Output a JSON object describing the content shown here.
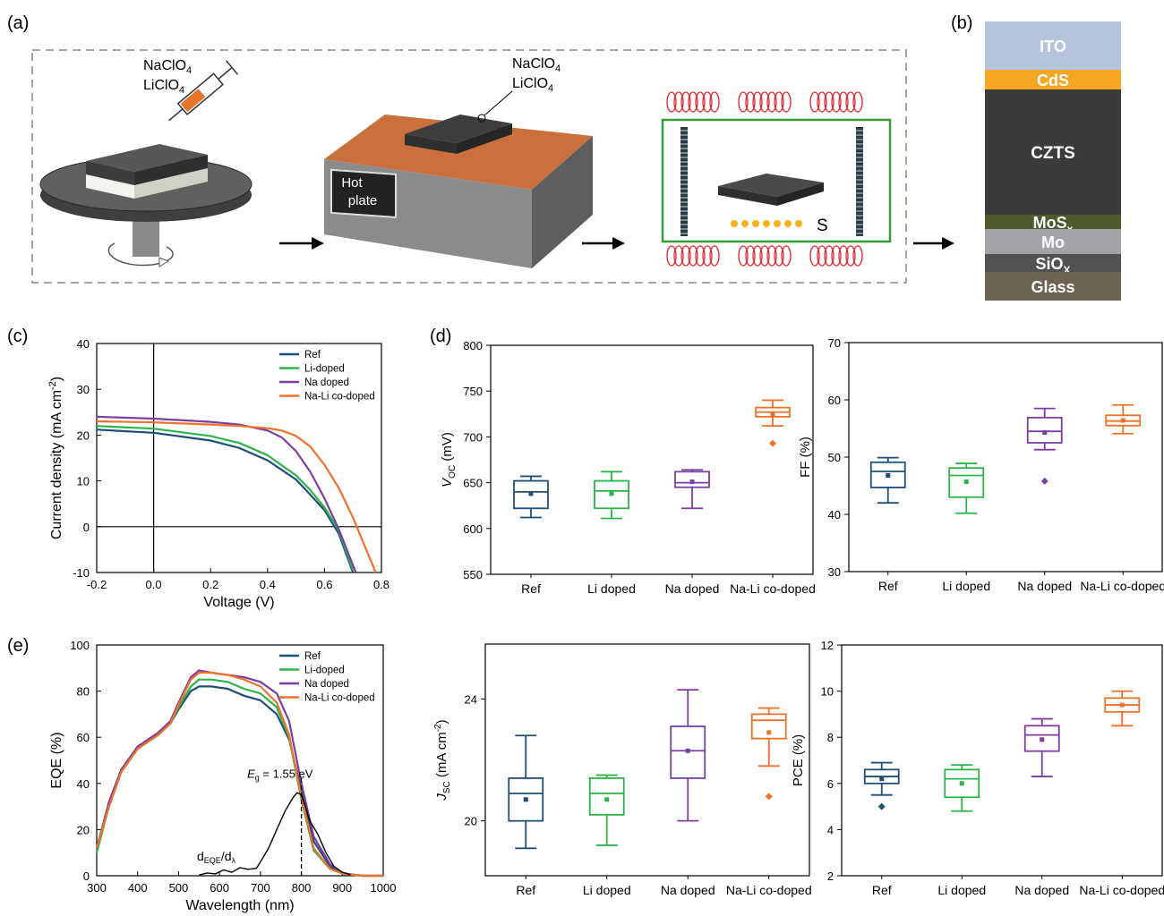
{
  "panel_labels": {
    "a": "(a)",
    "b": "(b)",
    "c": "(c)",
    "d": "(d)",
    "e": "(e)"
  },
  "schematic": {
    "spin_label_1": "NaClO",
    "spin_label_1_sub": "4",
    "spin_label_2": "LiClO",
    "spin_label_2_sub": "4",
    "plate_label_1": "NaClO",
    "plate_label_1_sub": "4",
    "plate_label_2": "LiClO",
    "plate_label_2_sub": "4",
    "hotplate_line1": "Hot",
    "hotplate_line2": "plate",
    "sulfur_label": "S",
    "colors": {
      "heater": "#e5262a",
      "sulfur": "#f3b31b",
      "tube": "#3a9a3a",
      "plate_top": "#c9703d"
    }
  },
  "stack": {
    "layers": [
      {
        "name": "ITO",
        "sub": "",
        "color": "#b4c4dc",
        "text_color": "#ffffff"
      },
      {
        "name": "CdS",
        "sub": "",
        "color": "#f5a623",
        "text_color": "#ffffff"
      },
      {
        "name": "CZTS",
        "sub": "",
        "color": "#3b3b3b",
        "text_color": "#ffffff"
      },
      {
        "name": "MoS",
        "sub": "x",
        "color": "#4f5a2a",
        "text_color": "#ffffff"
      },
      {
        "name": "Mo",
        "sub": "",
        "color": "#a3a3a8",
        "text_color": "#ffffff"
      },
      {
        "name": "SiO",
        "sub": "X",
        "color": "#525252",
        "text_color": "#ffffff"
      },
      {
        "name": "Glass",
        "sub": "",
        "color": "#6e6252",
        "text_color": "#ffffff"
      }
    ]
  },
  "chart_data": [
    {
      "panel": "c",
      "type": "line",
      "xlabel": "Voltage (V)",
      "ylabel": "Current density (mA cm",
      "ylabel_sup": "-2",
      "ylabel_end": ")",
      "xlim": [
        -0.2,
        0.8
      ],
      "ylim": [
        -10,
        40
      ],
      "xticks": [
        "-0.2",
        "0.0",
        "0.2",
        "0.4",
        "0.6",
        "0.8"
      ],
      "yticks": [
        "-10",
        "0",
        "10",
        "20",
        "30",
        "40"
      ],
      "legend_position": "top-right",
      "series": [
        {
          "name": "Ref",
          "color": "#1f4e79",
          "x": [
            -0.2,
            0.0,
            0.2,
            0.3,
            0.4,
            0.5,
            0.55,
            0.6,
            0.65,
            0.7
          ],
          "y": [
            21.2,
            20.5,
            18.8,
            17.2,
            14.5,
            10.3,
            7.0,
            3.6,
            -1.5,
            -10
          ]
        },
        {
          "name": "Li-doped",
          "color": "#2db34a",
          "x": [
            -0.2,
            0.0,
            0.2,
            0.3,
            0.4,
            0.5,
            0.55,
            0.6,
            0.65,
            0.7
          ],
          "y": [
            22.0,
            21.4,
            19.8,
            18.3,
            15.6,
            11.2,
            8.0,
            4.2,
            -0.8,
            -9.5
          ]
        },
        {
          "name": "Na doped",
          "color": "#7b3fa0",
          "x": [
            -0.2,
            0.0,
            0.2,
            0.3,
            0.4,
            0.45,
            0.5,
            0.55,
            0.6,
            0.65,
            0.71
          ],
          "y": [
            24.0,
            23.6,
            22.9,
            22.3,
            21.0,
            19.5,
            16.5,
            12.0,
            6.2,
            -0.5,
            -10
          ]
        },
        {
          "name": "Na-Li co-doped",
          "color": "#f0722a",
          "x": [
            -0.2,
            0.0,
            0.2,
            0.3,
            0.4,
            0.45,
            0.5,
            0.55,
            0.6,
            0.65,
            0.7,
            0.78
          ],
          "y": [
            23.0,
            22.8,
            22.3,
            22.0,
            21.5,
            21.0,
            19.8,
            17.5,
            13.5,
            8.5,
            2.0,
            -10
          ]
        }
      ]
    },
    {
      "panel": "d-voc",
      "type": "box",
      "ylabel": "V",
      "ylabel_sub": "OC",
      "ylabel_end": " (mV)",
      "ylim": [
        550,
        800
      ],
      "yticks": [
        "550",
        "600",
        "650",
        "700",
        "750",
        "800"
      ],
      "categories": [
        "Ref",
        "Li doped",
        "Na doped",
        "Na-Li co-doped"
      ],
      "colors": [
        "#1f4e79",
        "#2db34a",
        "#7b3fa0",
        "#f0722a"
      ],
      "boxes": [
        {
          "min": 612,
          "q1": 622,
          "median": 640,
          "q3": 652,
          "max": 657,
          "mean": 638,
          "outliers": []
        },
        {
          "min": 611,
          "q1": 622,
          "median": 641,
          "q3": 652,
          "max": 662,
          "mean": 638,
          "outliers": []
        },
        {
          "min": 622,
          "q1": 645,
          "median": 650,
          "q3": 662,
          "max": 664,
          "mean": 651,
          "outliers": []
        },
        {
          "min": 712,
          "q1": 722,
          "median": 727,
          "q3": 732,
          "max": 740,
          "mean": 724,
          "outliers": [
            693
          ]
        }
      ]
    },
    {
      "panel": "d-ff",
      "type": "box",
      "ylabel": "FF (%)",
      "ylim": [
        30,
        70
      ],
      "yticks": [
        "30",
        "40",
        "50",
        "60",
        "70"
      ],
      "categories": [
        "Ref",
        "Li doped",
        "Na doped",
        "Na-Li co-doped"
      ],
      "colors": [
        "#1f4e79",
        "#2db34a",
        "#7b3fa0",
        "#f0722a"
      ],
      "boxes": [
        {
          "min": 42,
          "q1": 44.7,
          "median": 47.5,
          "q3": 49.1,
          "max": 49.9,
          "mean": 46.8,
          "outliers": []
        },
        {
          "min": 40.2,
          "q1": 43,
          "median": 46.8,
          "q3": 48.1,
          "max": 48.9,
          "mean": 45.7,
          "outliers": []
        },
        {
          "min": 51.3,
          "q1": 52.5,
          "median": 54.5,
          "q3": 56.9,
          "max": 58.5,
          "mean": 54.3,
          "outliers": [
            45.8
          ]
        },
        {
          "min": 54.1,
          "q1": 55.5,
          "median": 56.3,
          "q3": 57.3,
          "max": 59.1,
          "mean": 56.4,
          "outliers": []
        }
      ]
    },
    {
      "panel": "e",
      "type": "line",
      "xlabel": "Wavelength (nm)",
      "ylabel": "EQE (%)",
      "xlim": [
        300,
        1000
      ],
      "ylim": [
        0,
        100
      ],
      "xticks": [
        "300",
        "400",
        "500",
        "600",
        "700",
        "800",
        "900",
        "1000"
      ],
      "yticks": [
        "0",
        "20",
        "40",
        "60",
        "80",
        "100"
      ],
      "legend_position": "top-right",
      "annotation_eg": "E",
      "annotation_eg_sub": "g",
      "annotation_eg_value": " = 1.55 eV",
      "annotation_deriv": "d",
      "annotation_deriv_sub1": "EQE",
      "annotation_deriv_mid": "/d",
      "annotation_deriv_sub2": "λ",
      "eg_wavelength": 800,
      "series": [
        {
          "name": "Ref",
          "color": "#1f4e79",
          "x": [
            300,
            330,
            360,
            400,
            450,
            480,
            500,
            530,
            550,
            580,
            620,
            660,
            700,
            740,
            770,
            800,
            830,
            870,
            900,
            950,
            1000
          ],
          "y": [
            12,
            30,
            45,
            55,
            61,
            66,
            72,
            80,
            82,
            82,
            81,
            78,
            76,
            70,
            59,
            37,
            15,
            4,
            1,
            0,
            0
          ]
        },
        {
          "name": "Li-doped",
          "color": "#2db34a",
          "x": [
            300,
            330,
            360,
            400,
            450,
            480,
            500,
            530,
            550,
            580,
            620,
            660,
            700,
            740,
            770,
            800,
            830,
            870,
            900,
            950,
            1000
          ],
          "y": [
            10,
            30,
            45,
            55,
            61,
            66,
            73,
            82,
            85,
            85,
            84,
            81,
            79,
            73,
            60,
            33,
            11,
            3,
            1,
            0,
            0
          ]
        },
        {
          "name": "Na doped",
          "color": "#7b3fa0",
          "x": [
            300,
            330,
            360,
            400,
            450,
            480,
            500,
            530,
            550,
            580,
            620,
            660,
            700,
            740,
            770,
            800,
            830,
            870,
            900,
            950,
            1000
          ],
          "y": [
            12,
            32,
            46,
            56,
            62,
            67,
            75,
            86,
            89,
            88,
            87,
            86,
            84,
            79,
            67,
            40,
            17,
            5,
            1,
            0,
            0
          ]
        },
        {
          "name": "Na-Li co-doped",
          "color": "#f0722a",
          "x": [
            300,
            330,
            360,
            400,
            450,
            480,
            500,
            530,
            550,
            580,
            620,
            660,
            700,
            740,
            770,
            800,
            830,
            870,
            900,
            950,
            1000
          ],
          "y": [
            12,
            30,
            45,
            55,
            61,
            66,
            74,
            85,
            88,
            88,
            87,
            85,
            82,
            75,
            61,
            34,
            12,
            3,
            1,
            0,
            0
          ]
        },
        {
          "name": "",
          "color": "#000000",
          "x": [
            550,
            570,
            590,
            610,
            630,
            650,
            670,
            690,
            700,
            720,
            740,
            760,
            780,
            790,
            800,
            810,
            820,
            840,
            860,
            880,
            900,
            920
          ],
          "y": [
            0.3,
            1.2,
            0.8,
            2.5,
            1.5,
            3.5,
            2.8,
            3.2,
            6,
            12,
            20,
            28,
            34,
            36,
            35,
            30,
            24,
            18,
            10,
            4,
            1.5,
            0.5
          ]
        }
      ]
    },
    {
      "panel": "e-jsc",
      "type": "box",
      "ylabel": "J",
      "ylabel_sub": "SC",
      "ylabel_end": " (mA cm",
      "ylabel_sup": "-2",
      "ylabel_close": ")",
      "ylim": [
        18.2,
        25.8
      ],
      "yticks": [
        "20",
        "24"
      ],
      "ytick_values": [
        20,
        24
      ],
      "categories": [
        "Ref",
        "Li doped",
        "Na doped",
        "Na-Li co-doped"
      ],
      "colors": [
        "#1f4e79",
        "#2db34a",
        "#7b3fa0",
        "#f0722a"
      ],
      "boxes": [
        {
          "min": 19.1,
          "q1": 20.0,
          "median": 20.9,
          "q3": 21.4,
          "max": 22.8,
          "mean": 20.7,
          "outliers": []
        },
        {
          "min": 19.2,
          "q1": 20.2,
          "median": 20.9,
          "q3": 21.4,
          "max": 21.5,
          "mean": 20.7,
          "outliers": []
        },
        {
          "min": 20.0,
          "q1": 21.4,
          "median": 22.3,
          "q3": 23.1,
          "max": 24.3,
          "mean": 22.3,
          "outliers": []
        },
        {
          "min": 21.8,
          "q1": 22.7,
          "median": 23.3,
          "q3": 23.5,
          "max": 23.7,
          "mean": 22.9,
          "outliers": [
            20.8
          ]
        }
      ]
    },
    {
      "panel": "e-pce",
      "type": "box",
      "ylabel": "PCE (%)",
      "ylim": [
        2,
        12
      ],
      "yticks": [
        "2",
        "4",
        "6",
        "8",
        "10",
        "12"
      ],
      "categories": [
        "Ref",
        "Li doped",
        "Na doped",
        "Na-Li co-doped"
      ],
      "colors": [
        "#1f4e79",
        "#2db34a",
        "#7b3fa0",
        "#f0722a"
      ],
      "boxes": [
        {
          "min": 5.5,
          "q1": 6.0,
          "median": 6.3,
          "q3": 6.6,
          "max": 6.9,
          "mean": 6.2,
          "outliers": [
            5.0
          ]
        },
        {
          "min": 4.8,
          "q1": 5.4,
          "median": 6.2,
          "q3": 6.6,
          "max": 6.8,
          "mean": 6.0,
          "outliers": []
        },
        {
          "min": 6.3,
          "q1": 7.4,
          "median": 8.1,
          "q3": 8.5,
          "max": 8.8,
          "mean": 7.9,
          "outliers": []
        },
        {
          "min": 8.5,
          "q1": 9.1,
          "median": 9.4,
          "q3": 9.7,
          "max": 10.0,
          "mean": 9.4,
          "outliers": []
        }
      ]
    }
  ]
}
